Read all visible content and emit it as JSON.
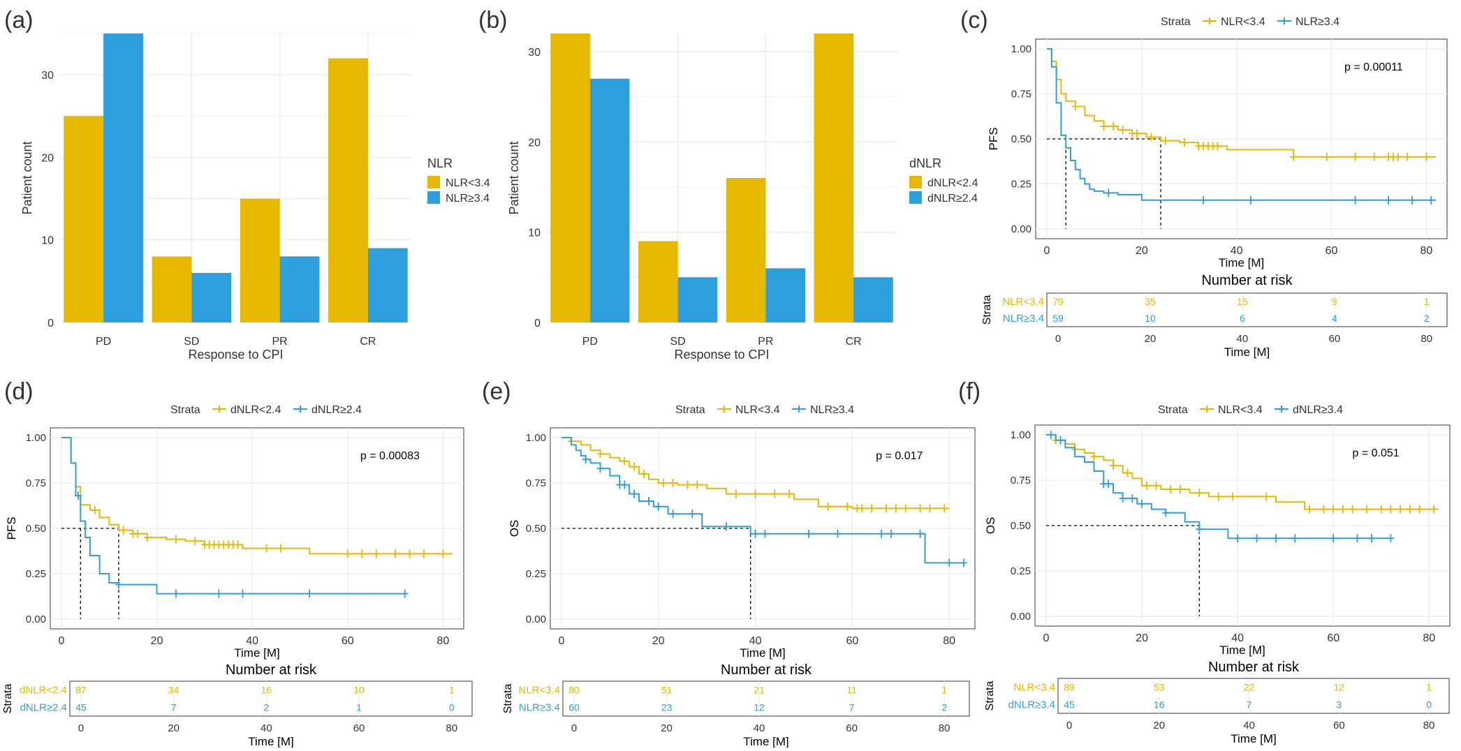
{
  "colors": {
    "low": "#E6B800",
    "high": "#2E9FDD",
    "grid": "#EBEBEB",
    "axis": "#333333",
    "text": "#333333"
  },
  "chart_data": [
    {
      "panel": "(a)",
      "type": "bar",
      "categories": [
        "PD",
        "SD",
        "PR",
        "CR"
      ],
      "series": [
        {
          "name": "NLR<3.4",
          "values": [
            25,
            8,
            15,
            32
          ]
        },
        {
          "name": "NLR≥3.4",
          "values": [
            35,
            6,
            8,
            9
          ]
        }
      ],
      "ylim": [
        0,
        35
      ],
      "yticks": [
        0,
        10,
        20,
        30
      ],
      "xlabel": "Response to CPI",
      "ylabel": "Patient count",
      "legend_title": "NLR",
      "legend_placement": "right",
      "grid": true
    },
    {
      "panel": "(b)",
      "type": "bar",
      "categories": [
        "PD",
        "SD",
        "PR",
        "CR"
      ],
      "series": [
        {
          "name": "dNLR<2.4",
          "values": [
            32,
            9,
            16,
            32
          ]
        },
        {
          "name": "dNLR≥2.4",
          "values": [
            27,
            5,
            6,
            5
          ]
        }
      ],
      "ylim": [
        0,
        32
      ],
      "yticks": [
        0,
        10,
        20,
        30
      ],
      "xlabel": "Response to CPI",
      "ylabel": "Patient count",
      "legend_title": "dNLR",
      "legend_placement": "right",
      "grid": true
    },
    {
      "panel": "(c)",
      "type": "line",
      "legend_title": "Strata",
      "ylabel": "PFS",
      "xlabel": "Time [M]",
      "p_text": "p = 0.00011",
      "xlim": [
        0,
        82
      ],
      "ylim": [
        0,
        1
      ],
      "xticks": [
        0,
        20,
        40,
        60,
        80
      ],
      "yticks": [
        "0.00",
        "0.25",
        "0.50",
        "0.75",
        "1.00"
      ],
      "series": [
        {
          "name": "NLR<3.4",
          "x": [
            0,
            1,
            2,
            3,
            4,
            6,
            8,
            10,
            12,
            15,
            18,
            21,
            24,
            28,
            32,
            38,
            52,
            82
          ],
          "y": [
            1.0,
            0.93,
            0.83,
            0.75,
            0.71,
            0.68,
            0.63,
            0.6,
            0.57,
            0.55,
            0.53,
            0.51,
            0.49,
            0.48,
            0.46,
            0.44,
            0.4,
            0.4
          ],
          "censor_x": [
            6,
            12,
            14,
            16,
            18,
            19,
            22,
            25,
            29,
            32,
            33,
            34,
            35,
            36,
            52,
            59,
            65,
            69,
            72,
            73,
            74,
            76,
            80
          ]
        },
        {
          "name": "NLR≥3.4",
          "x": [
            0,
            1,
            2,
            3,
            4,
            5,
            6,
            7,
            8,
            9,
            10,
            12,
            15,
            20,
            82
          ],
          "y": [
            1.0,
            0.9,
            0.7,
            0.52,
            0.45,
            0.38,
            0.33,
            0.28,
            0.25,
            0.22,
            0.21,
            0.2,
            0.19,
            0.16,
            0.16
          ],
          "censor_x": [
            13,
            33,
            43,
            65,
            72,
            77,
            81
          ]
        }
      ],
      "median_x": [
        4,
        24
      ],
      "risk_title": "Number at risk",
      "risk_strata_label": "Strata",
      "risk_x": [
        0,
        20,
        40,
        60,
        80
      ],
      "risk_rows": [
        {
          "label": "NLR<3.4",
          "counts": [
            79,
            35,
            15,
            9,
            1
          ]
        },
        {
          "label": "NLR≥3.4",
          "counts": [
            59,
            10,
            6,
            4,
            2
          ]
        }
      ]
    },
    {
      "panel": "(d)",
      "type": "line",
      "legend_title": "Strata",
      "ylabel": "PFS",
      "xlabel": "Time [M]",
      "p_text": "p = 0.00083",
      "xlim": [
        0,
        82
      ],
      "ylim": [
        0,
        1
      ],
      "xticks": [
        0,
        20,
        40,
        60,
        80
      ],
      "yticks": [
        "0.00",
        "0.25",
        "0.50",
        "0.75",
        "1.00"
      ],
      "series": [
        {
          "name": "dNLR<2.4",
          "x": [
            0,
            2,
            3,
            4,
            6,
            8,
            10,
            12,
            15,
            18,
            22,
            26,
            30,
            38,
            52,
            82
          ],
          "y": [
            1.0,
            0.86,
            0.73,
            0.63,
            0.6,
            0.56,
            0.52,
            0.49,
            0.47,
            0.45,
            0.44,
            0.43,
            0.41,
            0.39,
            0.36,
            0.36
          ],
          "censor_x": [
            7,
            13,
            15,
            16,
            18,
            24,
            28,
            30,
            31,
            32,
            33,
            34,
            35,
            36,
            37,
            43,
            46,
            60,
            63,
            66,
            70,
            73,
            76,
            80
          ]
        },
        {
          "name": "dNLR≥2.4",
          "x": [
            0,
            2,
            3,
            4,
            5,
            6,
            8,
            10,
            12,
            16,
            20,
            72
          ],
          "y": [
            1.0,
            0.86,
            0.68,
            0.54,
            0.45,
            0.35,
            0.25,
            0.2,
            0.19,
            0.19,
            0.14,
            0.14
          ],
          "censor_x": [
            3.5,
            12,
            24,
            33,
            38,
            52,
            72
          ]
        }
      ],
      "median_x": [
        4,
        12
      ],
      "risk_title": "Number at risk",
      "risk_strata_label": "Strata",
      "risk_x": [
        0,
        20,
        40,
        60,
        80
      ],
      "risk_rows": [
        {
          "label": "dNLR<2.4",
          "counts": [
            87,
            34,
            16,
            10,
            1
          ]
        },
        {
          "label": "dNLR≥2.4",
          "counts": [
            45,
            7,
            2,
            1,
            0
          ]
        }
      ]
    },
    {
      "panel": "(e)",
      "type": "line",
      "legend_title": "Strata",
      "ylabel": "OS",
      "xlabel": "Time [M]",
      "p_text": "p = 0.017",
      "xlim": [
        0,
        83
      ],
      "ylim": [
        0,
        1
      ],
      "xticks": [
        0,
        20,
        40,
        60,
        80
      ],
      "yticks": [
        "0.00",
        "0.25",
        "0.50",
        "0.75",
        "1.00"
      ],
      "series": [
        {
          "name": "NLR<3.4",
          "x": [
            0,
            2,
            4,
            6,
            8,
            10,
            12,
            14,
            16,
            18,
            20,
            24,
            30,
            34,
            48,
            53,
            60,
            80
          ],
          "y": [
            1.0,
            0.98,
            0.96,
            0.93,
            0.91,
            0.89,
            0.87,
            0.84,
            0.8,
            0.77,
            0.75,
            0.74,
            0.72,
            0.69,
            0.66,
            0.62,
            0.61,
            0.61
          ],
          "censor_x": [
            2,
            8,
            13,
            15,
            17,
            21,
            23,
            26,
            28,
            36,
            40,
            44,
            47,
            55,
            59,
            61,
            62,
            64,
            67,
            69,
            71,
            74,
            76,
            79
          ]
        },
        {
          "name": "NLR≥3.4",
          "x": [
            0,
            2,
            3,
            4,
            5,
            6,
            8,
            10,
            12,
            14,
            16,
            19,
            22,
            29,
            39,
            75,
            83
          ],
          "y": [
            1.0,
            0.96,
            0.93,
            0.9,
            0.88,
            0.86,
            0.83,
            0.79,
            0.74,
            0.69,
            0.65,
            0.62,
            0.58,
            0.51,
            0.47,
            0.31,
            0.31
          ],
          "censor_x": [
            5,
            8,
            12,
            13,
            15,
            18,
            20,
            23,
            27,
            34,
            40,
            42,
            51,
            57,
            66,
            68,
            74,
            80,
            83
          ]
        }
      ],
      "median_x": [
        39
      ],
      "risk_title": "Number at risk",
      "risk_strata_label": "Strata",
      "risk_x": [
        0,
        20,
        40,
        60,
        80
      ],
      "risk_rows": [
        {
          "label": "NLR<3.4",
          "counts": [
            80,
            51,
            21,
            11,
            1
          ]
        },
        {
          "label": "NLR≥3.4",
          "counts": [
            60,
            23,
            12,
            7,
            2
          ]
        }
      ]
    },
    {
      "panel": "(f)",
      "type": "line",
      "legend_title": "Strata",
      "ylabel": "OS",
      "xlabel": "Time [M]",
      "p_text": "p = 0.051",
      "xlim": [
        0,
        82
      ],
      "ylim": [
        0,
        1
      ],
      "xticks": [
        0,
        20,
        40,
        60,
        80
      ],
      "yticks": [
        "0.00",
        "0.25",
        "0.50",
        "0.75",
        "1.00"
      ],
      "series": [
        {
          "name": "NLR<3.4",
          "x": [
            0,
            2,
            4,
            6,
            8,
            10,
            12,
            14,
            16,
            18,
            20,
            24,
            30,
            34,
            48,
            54,
            60,
            82
          ],
          "y": [
            1.0,
            0.97,
            0.95,
            0.92,
            0.9,
            0.88,
            0.86,
            0.83,
            0.79,
            0.76,
            0.72,
            0.7,
            0.68,
            0.66,
            0.63,
            0.59,
            0.59,
            0.59
          ],
          "censor_x": [
            2,
            6,
            10,
            14,
            17,
            21,
            23,
            26,
            28,
            32,
            36,
            39,
            46,
            55,
            58,
            60,
            62,
            64,
            67,
            70,
            72,
            74,
            76,
            78,
            81
          ]
        },
        {
          "name": "dNLR≥3.4",
          "x": [
            0,
            2,
            4,
            6,
            8,
            10,
            12,
            14,
            16,
            19,
            22,
            25,
            29,
            32,
            38,
            72
          ],
          "y": [
            1.0,
            0.97,
            0.93,
            0.88,
            0.85,
            0.8,
            0.73,
            0.68,
            0.65,
            0.62,
            0.59,
            0.57,
            0.52,
            0.48,
            0.43,
            0.43
          ],
          "censor_x": [
            1,
            3,
            12,
            13,
            16,
            18,
            20,
            25,
            32,
            40,
            44,
            48,
            52,
            60,
            65,
            68,
            72
          ]
        }
      ],
      "median_x": [
        32
      ],
      "risk_title": "Number at risk",
      "risk_strata_label": "Strata",
      "risk_x": [
        0,
        20,
        40,
        60,
        80
      ],
      "risk_rows": [
        {
          "label": "NLR<3.4",
          "counts": [
            89,
            53,
            22,
            12,
            1
          ]
        },
        {
          "label": "dNLR≥3.4",
          "counts": [
            45,
            16,
            7,
            3,
            0
          ]
        }
      ]
    }
  ]
}
